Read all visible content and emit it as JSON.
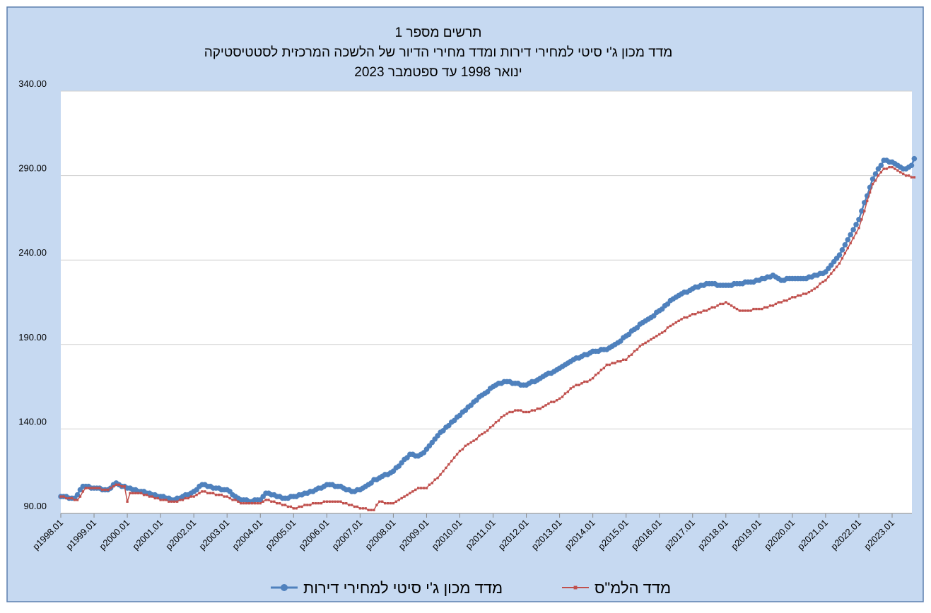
{
  "chart_data": {
    "type": "line",
    "title": [
      "תרשים מספר 1",
      "מדד מכון ג'י סיטי למחירי דירות ומדד מחירי הדיור של הלשכה המרכזית לסטטיסטיקה",
      "ינואר 1998 עד ספטמבר 2023"
    ],
    "categories": [
      "p1998.01",
      null,
      null,
      null,
      null,
      null,
      null,
      null,
      null,
      null,
      null,
      null,
      "p1999.01",
      null,
      null,
      null,
      null,
      null,
      null,
      null,
      null,
      null,
      null,
      null,
      "p2000.01",
      null,
      null,
      null,
      null,
      null,
      null,
      null,
      null,
      null,
      null,
      null,
      "p2001.01",
      null,
      null,
      null,
      null,
      null,
      null,
      null,
      null,
      null,
      null,
      null,
      "p2002.01",
      null,
      null,
      null,
      null,
      null,
      null,
      null,
      null,
      null,
      null,
      null,
      "p2003.01",
      null,
      null,
      null,
      null,
      null,
      null,
      null,
      null,
      null,
      null,
      null,
      "p2004.01",
      null,
      null,
      null,
      null,
      null,
      null,
      null,
      null,
      null,
      null,
      null,
      "p2005.01",
      null,
      null,
      null,
      null,
      null,
      null,
      null,
      null,
      null,
      null,
      null,
      "p2006.01",
      null,
      null,
      null,
      null,
      null,
      null,
      null,
      null,
      null,
      null,
      null,
      "p2007.01",
      null,
      null,
      null,
      null,
      null,
      null,
      null,
      null,
      null,
      null,
      null,
      "p2008.01",
      null,
      null,
      null,
      null,
      null,
      null,
      null,
      null,
      null,
      null,
      null,
      "p2009.01",
      null,
      null,
      null,
      null,
      null,
      null,
      null,
      null,
      null,
      null,
      null,
      "p2010.01",
      null,
      null,
      null,
      null,
      null,
      null,
      null,
      null,
      null,
      null,
      null,
      "p2011.01",
      null,
      null,
      null,
      null,
      null,
      null,
      null,
      null,
      null,
      null,
      null,
      "p2012.01",
      null,
      null,
      null,
      null,
      null,
      null,
      null,
      null,
      null,
      null,
      null,
      "p2013.01",
      null,
      null,
      null,
      null,
      null,
      null,
      null,
      null,
      null,
      null,
      null,
      "p2014.01",
      null,
      null,
      null,
      null,
      null,
      null,
      null,
      null,
      null,
      null,
      null,
      "p2015.01",
      null,
      null,
      null,
      null,
      null,
      null,
      null,
      null,
      null,
      null,
      null,
      "p2016.01",
      null,
      null,
      null,
      null,
      null,
      null,
      null,
      null,
      null,
      null,
      null,
      "p2017.01",
      null,
      null,
      null,
      null,
      null,
      null,
      null,
      null,
      null,
      null,
      null,
      "p2018.01",
      null,
      null,
      null,
      null,
      null,
      null,
      null,
      null,
      null,
      null,
      null,
      "p2019.01",
      null,
      null,
      null,
      null,
      null,
      null,
      null,
      null,
      null,
      null,
      null,
      "p2020.01",
      null,
      null,
      null,
      null,
      null,
      null,
      null,
      null,
      null,
      null,
      null,
      "p2021.01",
      null,
      null,
      null,
      null,
      null,
      null,
      null,
      null,
      null,
      null,
      null,
      "p2022.01",
      null,
      null,
      null,
      null,
      null,
      null,
      null,
      null,
      null,
      null,
      null,
      "p2023.01",
      null,
      null,
      null,
      null,
      null,
      null,
      null,
      null
    ],
    "series": [
      {
        "name": "מדד מכון ג'י סיטי למחירי דירות",
        "color": "#4f81bd",
        "marker": "circle",
        "values": [
          100,
          100,
          100,
          99,
          99,
          99,
          101,
          104,
          106,
          106,
          106,
          105,
          105,
          105,
          105,
          104,
          104,
          104,
          105,
          107,
          108,
          107,
          106,
          106,
          105,
          105,
          104,
          104,
          103,
          103,
          103,
          102,
          102,
          101,
          101,
          100,
          100,
          100,
          99,
          99,
          98,
          98,
          99,
          99,
          100,
          101,
          101,
          102,
          103,
          104,
          106,
          107,
          107,
          106,
          106,
          105,
          105,
          105,
          104,
          104,
          104,
          103,
          101,
          100,
          99,
          98,
          98,
          98,
          97,
          97,
          98,
          98,
          98,
          100,
          102,
          102,
          101,
          101,
          100,
          100,
          99,
          99,
          99,
          100,
          100,
          100,
          101,
          101,
          102,
          102,
          103,
          103,
          104,
          105,
          105,
          106,
          107,
          107,
          107,
          106,
          106,
          106,
          105,
          104,
          104,
          103,
          103,
          104,
          104,
          105,
          106,
          107,
          108,
          110,
          110,
          111,
          112,
          113,
          113,
          114,
          115,
          117,
          118,
          120,
          122,
          123,
          125,
          125,
          124,
          124,
          125,
          126,
          128,
          130,
          132,
          134,
          136,
          138,
          139,
          141,
          142,
          144,
          145,
          147,
          148,
          150,
          151,
          153,
          154,
          156,
          157,
          159,
          160,
          161,
          162,
          164,
          165,
          166,
          167,
          167,
          168,
          168,
          168,
          167,
          167,
          167,
          166,
          166,
          166,
          167,
          168,
          168,
          169,
          170,
          171,
          172,
          173,
          173,
          174,
          175,
          176,
          177,
          178,
          179,
          180,
          181,
          182,
          182,
          183,
          184,
          184,
          185,
          186,
          186,
          186,
          187,
          187,
          187,
          188,
          189,
          190,
          191,
          192,
          194,
          195,
          196,
          198,
          199,
          200,
          202,
          203,
          204,
          205,
          206,
          207,
          209,
          210,
          211,
          213,
          214,
          216,
          217,
          218,
          219,
          220,
          221,
          221,
          222,
          223,
          224,
          224,
          225,
          225,
          226,
          226,
          226,
          226,
          225,
          225,
          225,
          225,
          225,
          225,
          226,
          226,
          226,
          226,
          227,
          227,
          227,
          227,
          228,
          228,
          229,
          229,
          230,
          230,
          231,
          230,
          229,
          228,
          228,
          229,
          229,
          229,
          229,
          229,
          229,
          229,
          229,
          230,
          230,
          231,
          231,
          232,
          232,
          233,
          235,
          237,
          239,
          241,
          243,
          246,
          249,
          252,
          255,
          258,
          261,
          264,
          269,
          274,
          278,
          283,
          288,
          291,
          294,
          296,
          299,
          299,
          298,
          298,
          297,
          296,
          295,
          294,
          294,
          295,
          296,
          300
        ]
      },
      {
        "name": "מדד הלמ\"ס",
        "color": "#c0504d",
        "marker": "square",
        "values": [
          100,
          100,
          99,
          99,
          99,
          98,
          98,
          100,
          103,
          105,
          105,
          105,
          105,
          105,
          105,
          104,
          104,
          104,
          105,
          106,
          107,
          107,
          106,
          106,
          97,
          102,
          102,
          102,
          102,
          102,
          101,
          101,
          100,
          100,
          99,
          99,
          98,
          98,
          98,
          97,
          97,
          97,
          97,
          98,
          98,
          99,
          99,
          100,
          100,
          101,
          102,
          103,
          103,
          102,
          102,
          102,
          101,
          101,
          101,
          100,
          100,
          99,
          98,
          98,
          97,
          96,
          96,
          96,
          96,
          96,
          96,
          96,
          96,
          97,
          98,
          98,
          97,
          97,
          96,
          96,
          95,
          95,
          94,
          94,
          93,
          93,
          94,
          94,
          95,
          95,
          95,
          96,
          96,
          96,
          96,
          97,
          97,
          97,
          97,
          97,
          97,
          97,
          96,
          96,
          95,
          95,
          94,
          94,
          93,
          93,
          93,
          92,
          92,
          92,
          95,
          97,
          97,
          96,
          96,
          96,
          96,
          97,
          98,
          99,
          100,
          101,
          102,
          103,
          104,
          105,
          105,
          105,
          105,
          107,
          108,
          110,
          111,
          113,
          115,
          117,
          119,
          121,
          123,
          125,
          127,
          128,
          130,
          131,
          132,
          133,
          134,
          136,
          137,
          138,
          139,
          141,
          142,
          144,
          145,
          147,
          148,
          149,
          150,
          150,
          151,
          151,
          151,
          150,
          150,
          150,
          151,
          151,
          152,
          152,
          153,
          154,
          155,
          156,
          156,
          157,
          158,
          159,
          161,
          162,
          164,
          165,
          166,
          166,
          167,
          168,
          168,
          169,
          170,
          172,
          173,
          175,
          176,
          178,
          178,
          179,
          179,
          180,
          180,
          181,
          181,
          183,
          184,
          186,
          187,
          189,
          190,
          191,
          192,
          193,
          194,
          195,
          196,
          197,
          198,
          200,
          201,
          202,
          203,
          204,
          205,
          206,
          206,
          207,
          208,
          208,
          209,
          209,
          210,
          210,
          211,
          212,
          212,
          213,
          214,
          214,
          215,
          214,
          213,
          212,
          211,
          210,
          210,
          210,
          210,
          210,
          211,
          211,
          211,
          211,
          212,
          212,
          213,
          213,
          214,
          215,
          215,
          216,
          216,
          217,
          218,
          218,
          219,
          219,
          220,
          220,
          221,
          222,
          223,
          224,
          226,
          227,
          228,
          230,
          232,
          234,
          236,
          238,
          241,
          244,
          247,
          250,
          253,
          256,
          259,
          264,
          269,
          275,
          280,
          285,
          287,
          290,
          292,
          294,
          294,
          295,
          295,
          294,
          293,
          292,
          291,
          290,
          290,
          289,
          289
        ]
      }
    ],
    "ylim": [
      90,
      340
    ],
    "yticks": [
      {
        "value": 90,
        "label": "90.00"
      },
      {
        "value": 140,
        "label": "140.00"
      },
      {
        "value": 190,
        "label": "190.00"
      },
      {
        "value": 240,
        "label": "240.00"
      },
      {
        "value": 290,
        "label": "290.00"
      },
      {
        "value": 340,
        "label": "340.00"
      }
    ],
    "grid": true,
    "legend": "bottom"
  }
}
